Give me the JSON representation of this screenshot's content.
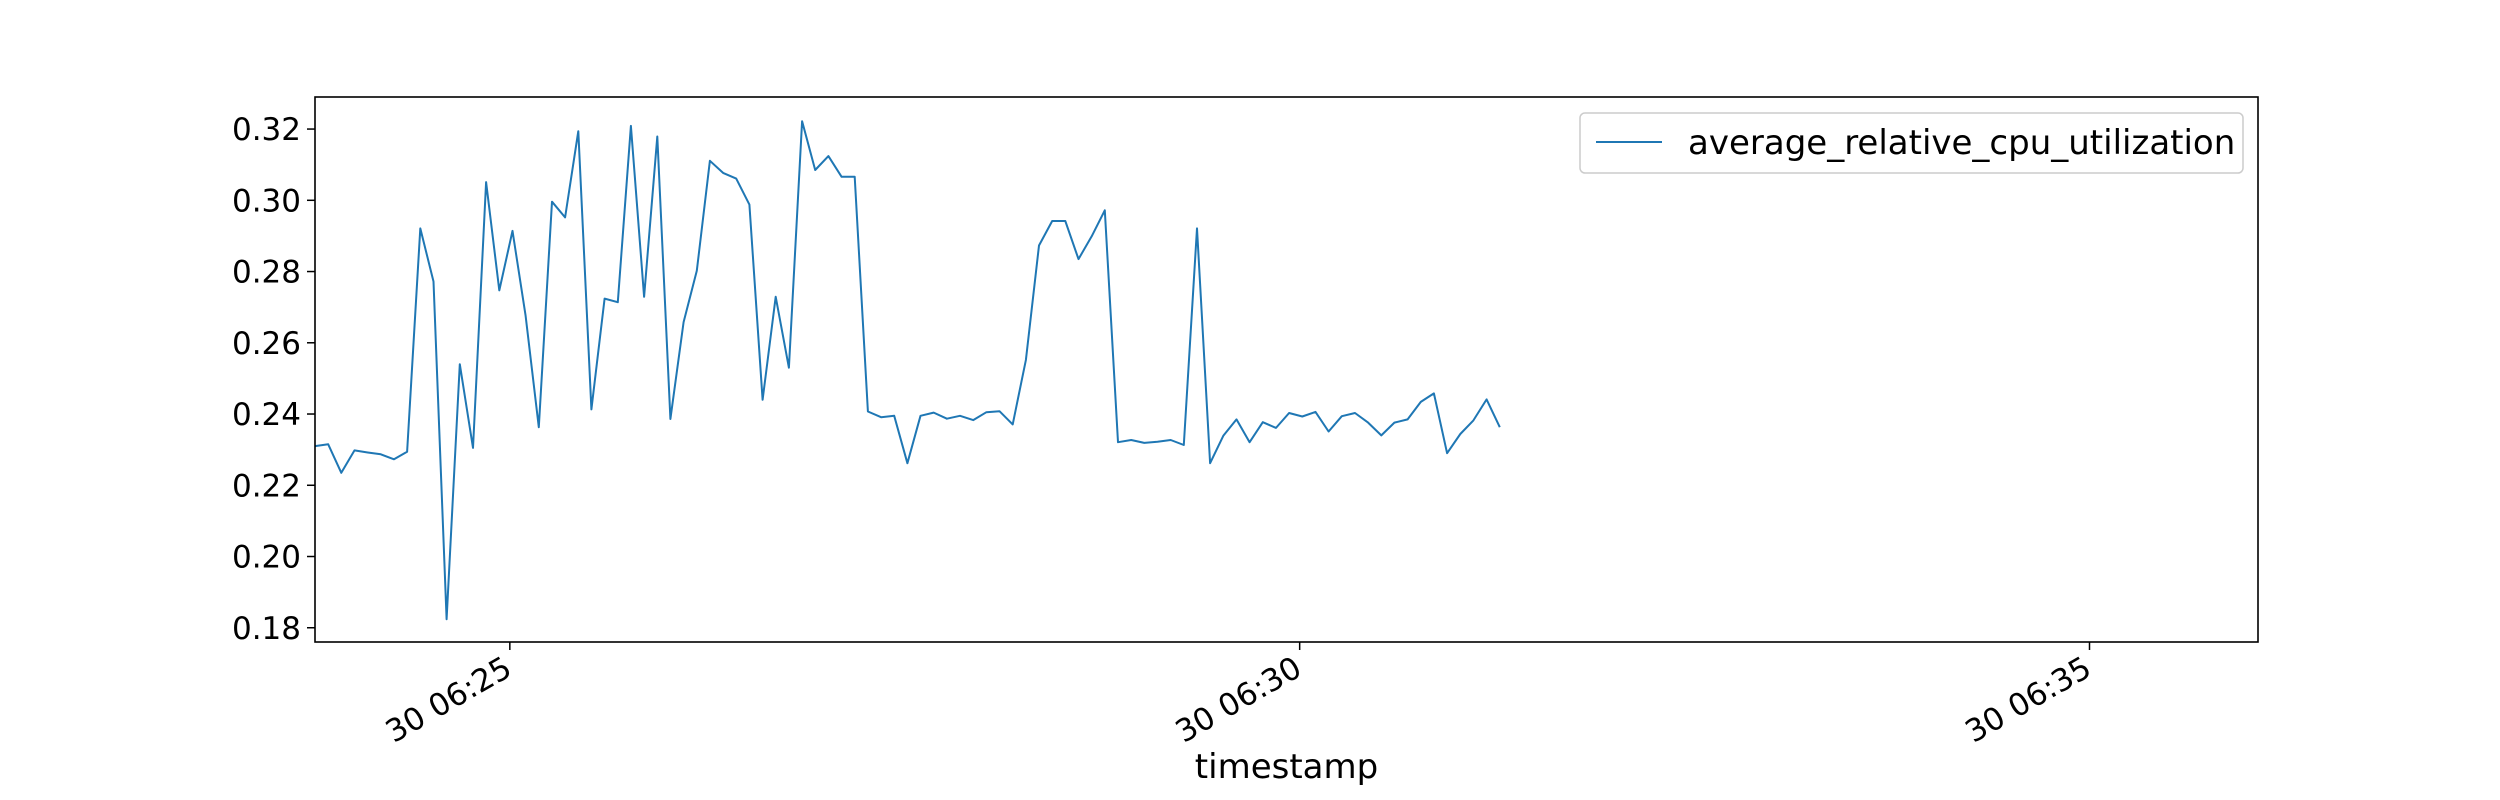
{
  "chart_data": {
    "type": "line",
    "title": "",
    "xlabel": "timestamp",
    "ylabel": "",
    "x_start": "06:23:46",
    "x_step_seconds": 5,
    "xlim": [
      "06:23:46",
      "06:36:04"
    ],
    "ylim": [
      0.176,
      0.329
    ],
    "xticks": [
      {
        "label": "30 06:25",
        "time": "06:25:00"
      },
      {
        "label": "30 06:30",
        "time": "06:30:00"
      },
      {
        "label": "30 06:35",
        "time": "06:35:00"
      }
    ],
    "yticks": [
      "0.18",
      "0.20",
      "0.22",
      "0.24",
      "0.26",
      "0.28",
      "0.30",
      "0.32"
    ],
    "grid": false,
    "legend": "top-right",
    "series": [
      {
        "name": "average_relative_cpu_utilization",
        "color": "#1f77b4",
        "values": [
          0.231,
          0.2315,
          0.2235,
          0.2298,
          0.2292,
          0.2287,
          0.2273,
          0.2294,
          0.2921,
          0.2772,
          0.1824,
          0.254,
          0.2305,
          0.3051,
          0.2747,
          0.2914,
          0.2676,
          0.2363,
          0.2996,
          0.2952,
          0.3194,
          0.2413,
          0.2724,
          0.2714,
          0.3209,
          0.2729,
          0.3179,
          0.2386,
          0.2658,
          0.2802,
          0.3111,
          0.3077,
          0.3061,
          0.2988,
          0.244,
          0.2729,
          0.253,
          0.3222,
          0.3085,
          0.3124,
          0.3066,
          0.3066,
          0.2407,
          0.2391,
          0.2395,
          0.2262,
          0.2395,
          0.2404,
          0.2387,
          0.2395,
          0.2383,
          0.2405,
          0.2408,
          0.2371,
          0.2552,
          0.2873,
          0.2942,
          0.2942,
          0.2835,
          0.2899,
          0.2972,
          0.2321,
          0.2327,
          0.2319,
          0.2322,
          0.2327,
          0.2313,
          0.2921,
          0.2262,
          0.2339,
          0.2385,
          0.2321,
          0.2377,
          0.2361,
          0.2403,
          0.2393,
          0.2406,
          0.2351,
          0.2394,
          0.2403,
          0.2376,
          0.234,
          0.2376,
          0.2385,
          0.2434,
          0.2458,
          0.229,
          0.2344,
          0.2382,
          0.2441,
          0.2363
        ]
      }
    ]
  }
}
